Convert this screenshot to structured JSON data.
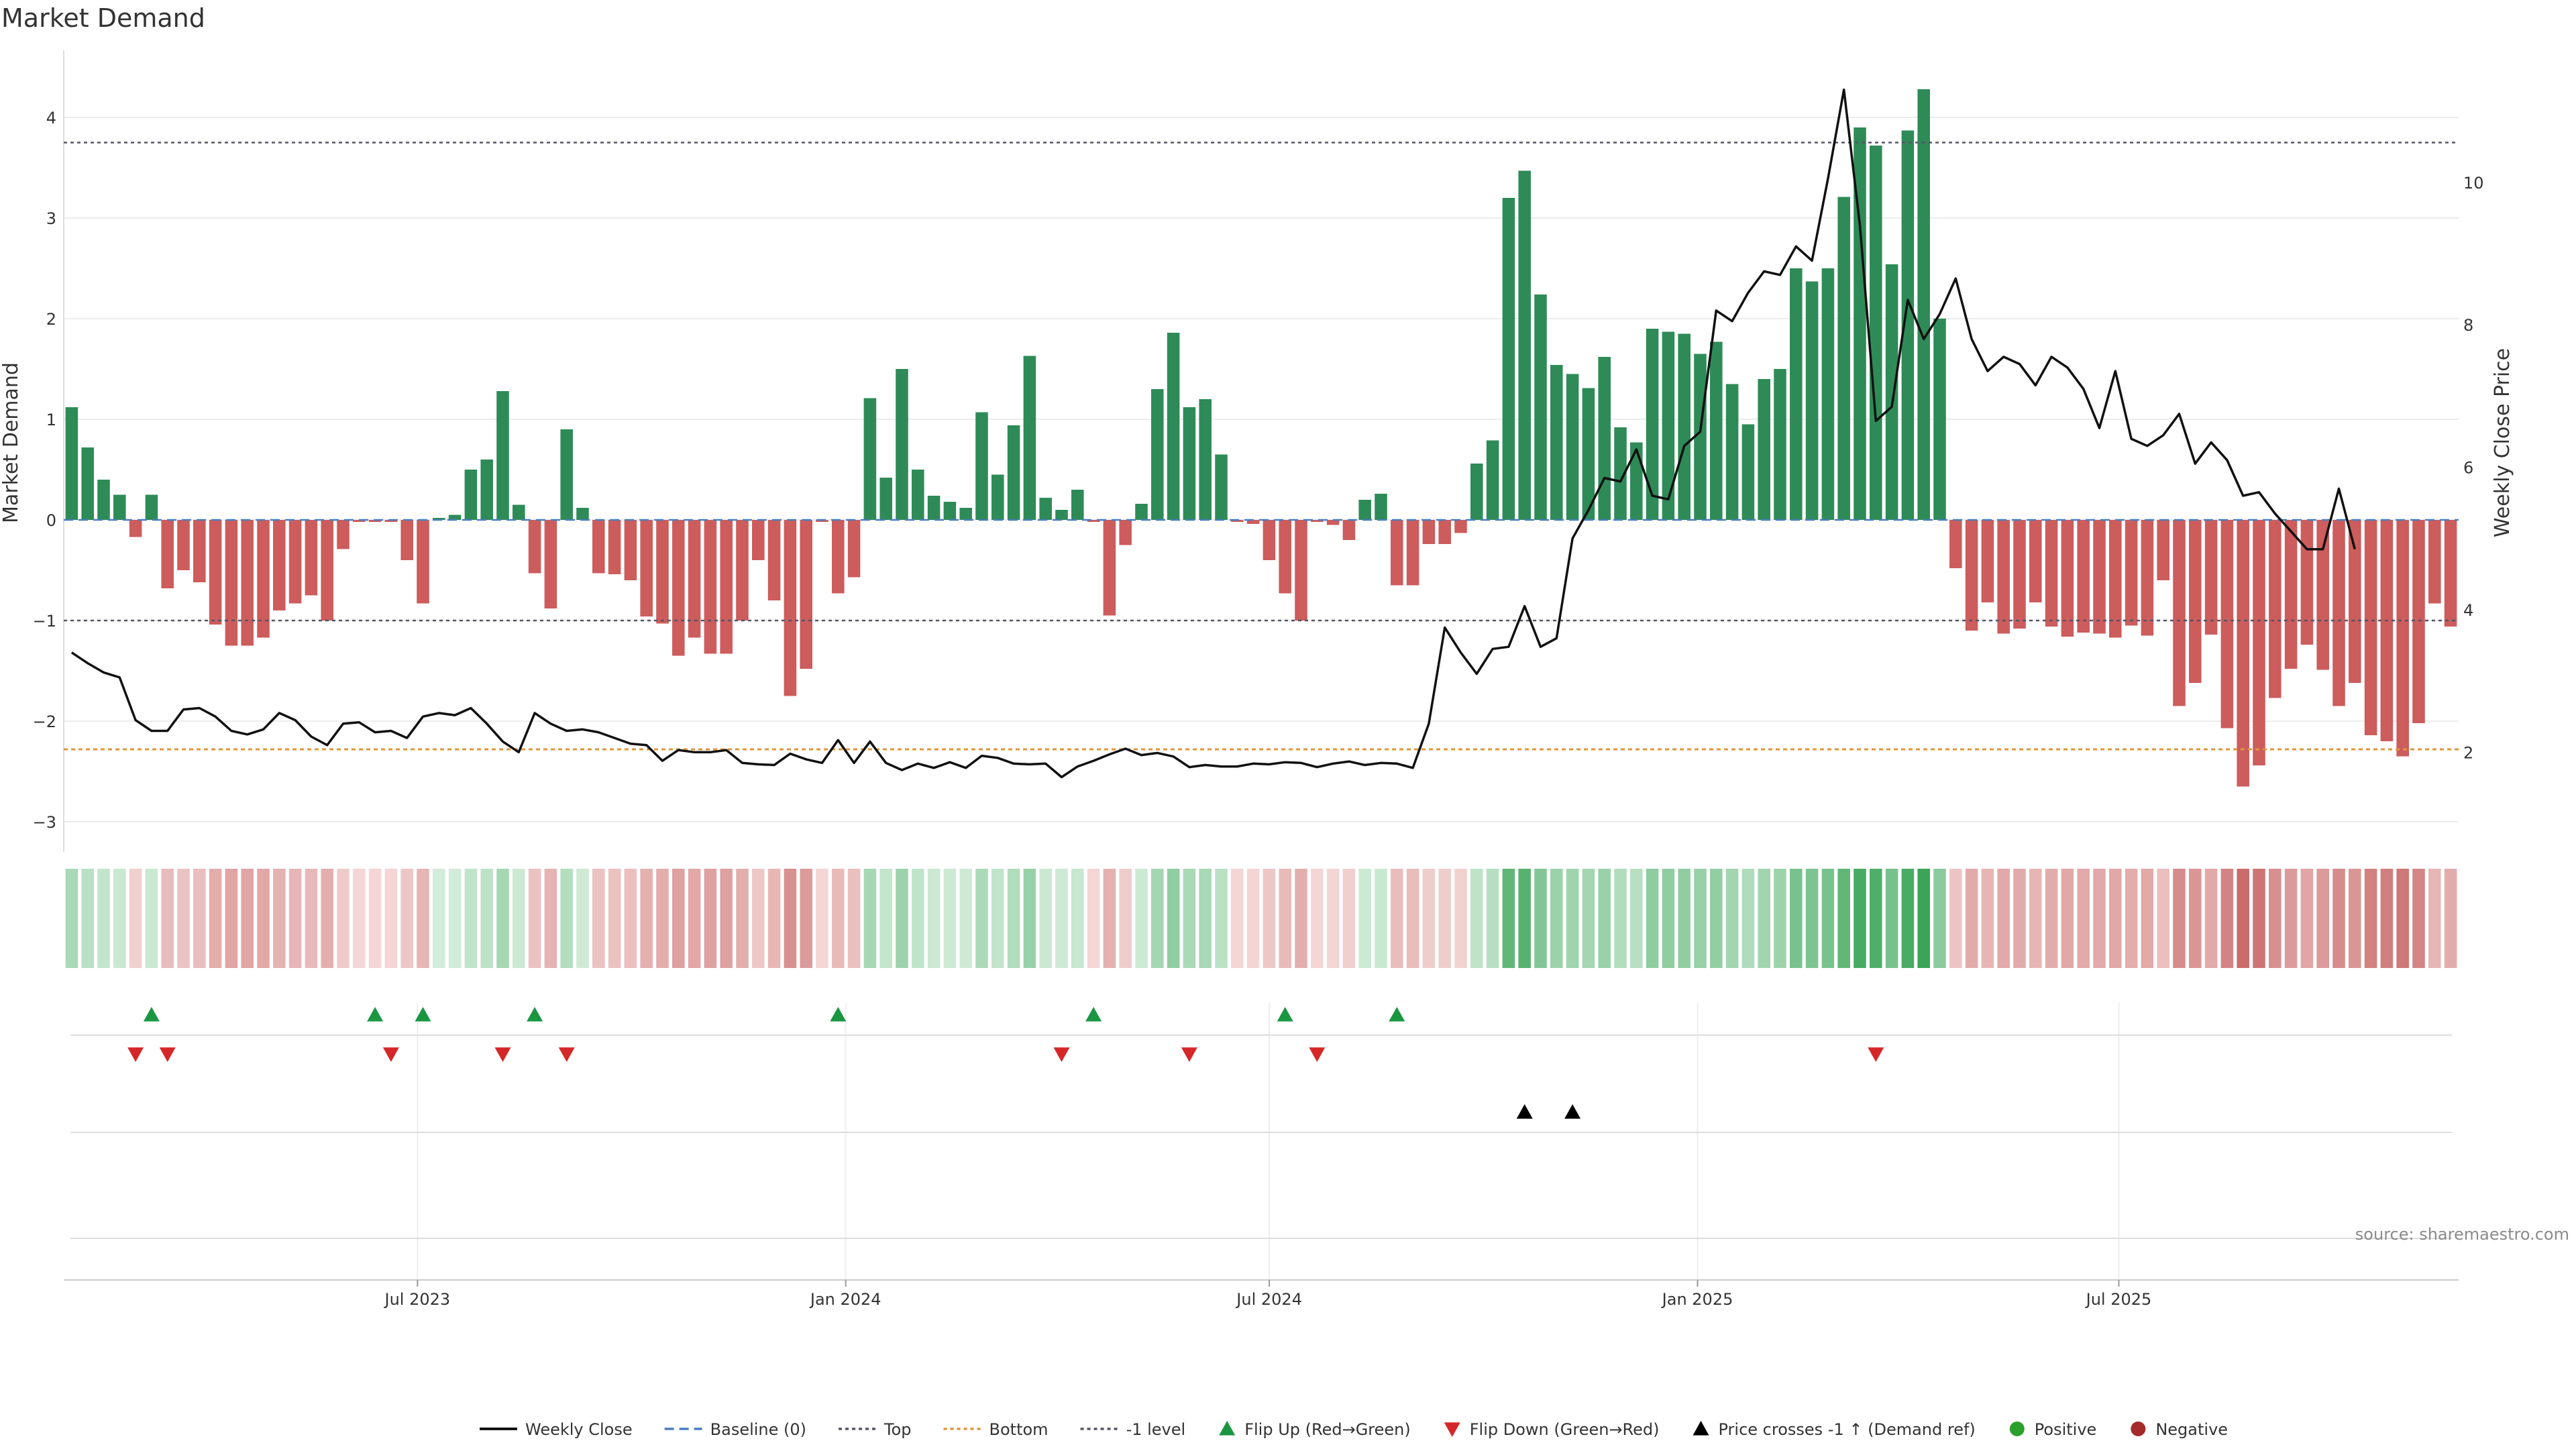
{
  "chart_data": {
    "type": "bar",
    "title": "Market Demand",
    "ylabel": "Market Demand",
    "y2label": "Weekly Close Price",
    "ylim": [
      -3.3,
      4.7
    ],
    "y2lim": [
      0.6,
      11.9
    ],
    "yticks": [
      -3,
      -2,
      -1,
      0,
      1,
      2,
      3,
      4
    ],
    "y2ticks": [
      2,
      4,
      6,
      8,
      10
    ],
    "x_dates": [
      "2023-01-30",
      "2025-11-24"
    ],
    "xticks": [
      {
        "date": "2023-07-01",
        "label": "Jul 2023"
      },
      {
        "date": "2024-01-01",
        "label": "Jan 2024"
      },
      {
        "date": "2024-07-01",
        "label": "Jul 2024"
      },
      {
        "date": "2025-01-01",
        "label": "Jan 2025"
      },
      {
        "date": "2025-07-01",
        "label": "Jul 2025"
      }
    ],
    "levels": {
      "top": 3.75,
      "bottom": -2.28,
      "minus_one": -1,
      "baseline": 0
    },
    "demand": [
      1.12,
      0.72,
      0.4,
      0.25,
      -0.17,
      0.25,
      -0.68,
      -0.5,
      -0.62,
      -1.04,
      -1.25,
      -1.25,
      -1.17,
      -0.9,
      -0.83,
      -0.75,
      -1.0,
      -0.29,
      -0.02,
      -0.02,
      -0.02,
      -0.4,
      -0.83,
      0.02,
      0.05,
      0.5,
      0.6,
      1.28,
      0.15,
      -0.53,
      -0.88,
      0.9,
      0.12,
      -0.53,
      -0.54,
      -0.6,
      -0.96,
      -1.03,
      -1.35,
      -1.17,
      -1.33,
      -1.33,
      -1.0,
      -0.4,
      -0.8,
      -1.75,
      -1.48,
      -0.02,
      -0.73,
      -0.57,
      1.21,
      0.42,
      1.5,
      0.5,
      0.24,
      0.18,
      0.12,
      1.07,
      0.45,
      0.94,
      1.63,
      0.22,
      0.1,
      0.3,
      -0.02,
      -0.95,
      -0.25,
      0.16,
      1.3,
      1.86,
      1.12,
      1.2,
      0.65,
      -0.02,
      -0.04,
      -0.4,
      -0.73,
      -1.0,
      -0.02,
      -0.05,
      -0.2,
      0.2,
      0.26,
      -0.65,
      -0.65,
      -0.24,
      -0.24,
      -0.13,
      0.56,
      0.79,
      3.2,
      3.47,
      2.24,
      1.54,
      1.45,
      1.31,
      1.62,
      0.92,
      0.77,
      1.9,
      1.87,
      1.85,
      1.65,
      1.77,
      1.35,
      0.95,
      1.4,
      1.5,
      2.5,
      2.37,
      2.5,
      3.21,
      3.9,
      3.72,
      2.54,
      3.87,
      4.28,
      2.0,
      -0.48,
      -1.1,
      -0.82,
      -1.13,
      -1.08,
      -0.82,
      -1.06,
      -1.16,
      -1.12,
      -1.13,
      -1.17,
      -1.05,
      -1.15,
      -0.6,
      -1.85,
      -1.62,
      -1.14,
      -2.07,
      -2.65,
      -2.44,
      -1.77,
      -1.48,
      -1.24,
      -1.49,
      -1.85,
      -1.62,
      -2.14,
      -2.2,
      -2.35,
      -2.02,
      -0.83,
      -1.06
    ],
    "weekly_close": [
      3.4,
      3.25,
      3.12,
      3.05,
      2.45,
      2.3,
      2.3,
      2.6,
      2.62,
      2.5,
      2.3,
      2.25,
      2.32,
      2.55,
      2.45,
      2.22,
      2.1,
      2.4,
      2.42,
      2.28,
      2.3,
      2.2,
      2.5,
      2.55,
      2.52,
      2.62,
      2.4,
      2.15,
      2.0,
      2.55,
      2.4,
      2.3,
      2.32,
      2.28,
      2.2,
      2.12,
      2.1,
      1.88,
      2.03,
      2.0,
      2.0,
      2.03,
      1.85,
      1.83,
      1.82,
      1.98,
      1.9,
      1.85,
      2.17,
      1.85,
      2.15,
      1.85,
      1.75,
      1.84,
      1.78,
      1.86,
      1.78,
      1.95,
      1.92,
      1.84,
      1.83,
      1.84,
      1.65,
      1.8,
      1.88,
      1.97,
      2.05,
      1.96,
      1.99,
      1.94,
      1.79,
      1.82,
      1.8,
      1.8,
      1.84,
      1.83,
      1.86,
      1.85,
      1.79,
      1.84,
      1.87,
      1.82,
      1.85,
      1.84,
      1.78,
      2.4,
      3.75,
      3.4,
      3.1,
      3.45,
      3.48,
      4.05,
      3.48,
      3.6,
      5.0,
      5.4,
      5.85,
      5.8,
      6.25,
      5.6,
      5.55,
      6.3,
      6.5,
      8.2,
      8.05,
      8.45,
      8.75,
      8.7,
      9.1,
      8.9,
      10.05,
      11.3,
      9.4,
      6.65,
      6.85,
      8.35,
      7.8,
      8.15,
      8.65,
      7.8,
      7.35,
      7.55,
      7.45,
      7.15,
      7.55,
      7.4,
      7.1,
      6.55,
      7.35,
      6.4,
      6.3,
      6.45,
      6.75,
      6.05,
      6.35,
      6.1,
      5.6,
      5.65,
      5.35,
      5.1,
      4.85,
      4.85,
      5.7,
      4.85
    ],
    "flip_up_idx": [
      5,
      19,
      22,
      29,
      48,
      64,
      76,
      83
    ],
    "flip_down_idx": [
      4,
      6,
      20,
      27,
      31,
      62,
      70,
      78,
      113
    ],
    "price_cross_idx": [
      91,
      94
    ],
    "colors": {
      "positive": "#2e8b57",
      "negative": "#cd5c5c",
      "line": "#111111",
      "baseline": "#4a7fbf",
      "top": "#555566",
      "bottom": "#e0963c",
      "minus_one": "#555566",
      "flip_up": "#1a9641",
      "flip_down": "#d62728",
      "cross": "#000000",
      "positive_dot": "#2ca02c",
      "negative_dot": "#a52a2a"
    },
    "legend": [
      {
        "key": "weekly_close",
        "label": "Weekly Close",
        "kind": "line"
      },
      {
        "key": "baseline",
        "label": "Baseline (0)",
        "kind": "dash"
      },
      {
        "key": "top",
        "label": "Top",
        "kind": "dot"
      },
      {
        "key": "bottom",
        "label": "Bottom",
        "kind": "dot"
      },
      {
        "key": "minus_one",
        "label": "-1 level",
        "kind": "dot"
      },
      {
        "key": "flip_up",
        "label": "Flip Up (Red→Green)",
        "kind": "tri-up"
      },
      {
        "key": "flip_down",
        "label": "Flip Down (Green→Red)",
        "kind": "tri-down"
      },
      {
        "key": "cross",
        "label": "Price crosses -1 ↑ (Demand ref)",
        "kind": "tri-up"
      },
      {
        "key": "positive_dot",
        "label": "Positive",
        "kind": "circle"
      },
      {
        "key": "negative_dot",
        "label": "Negative",
        "kind": "circle"
      }
    ],
    "legend_position": "bottom",
    "grid": true
  },
  "source": "source: sharemaestro.com"
}
